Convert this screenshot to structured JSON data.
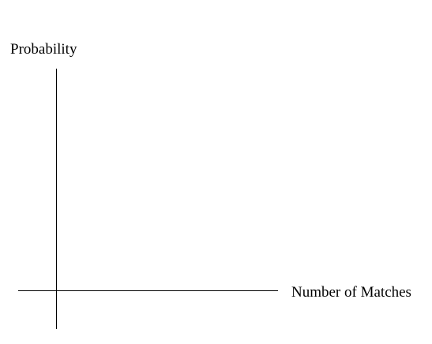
{
  "chart_data": {
    "type": "line",
    "title": "",
    "xlabel": "Number of Matches",
    "ylabel": "Probability",
    "series": [],
    "grid": false,
    "legend": false
  }
}
